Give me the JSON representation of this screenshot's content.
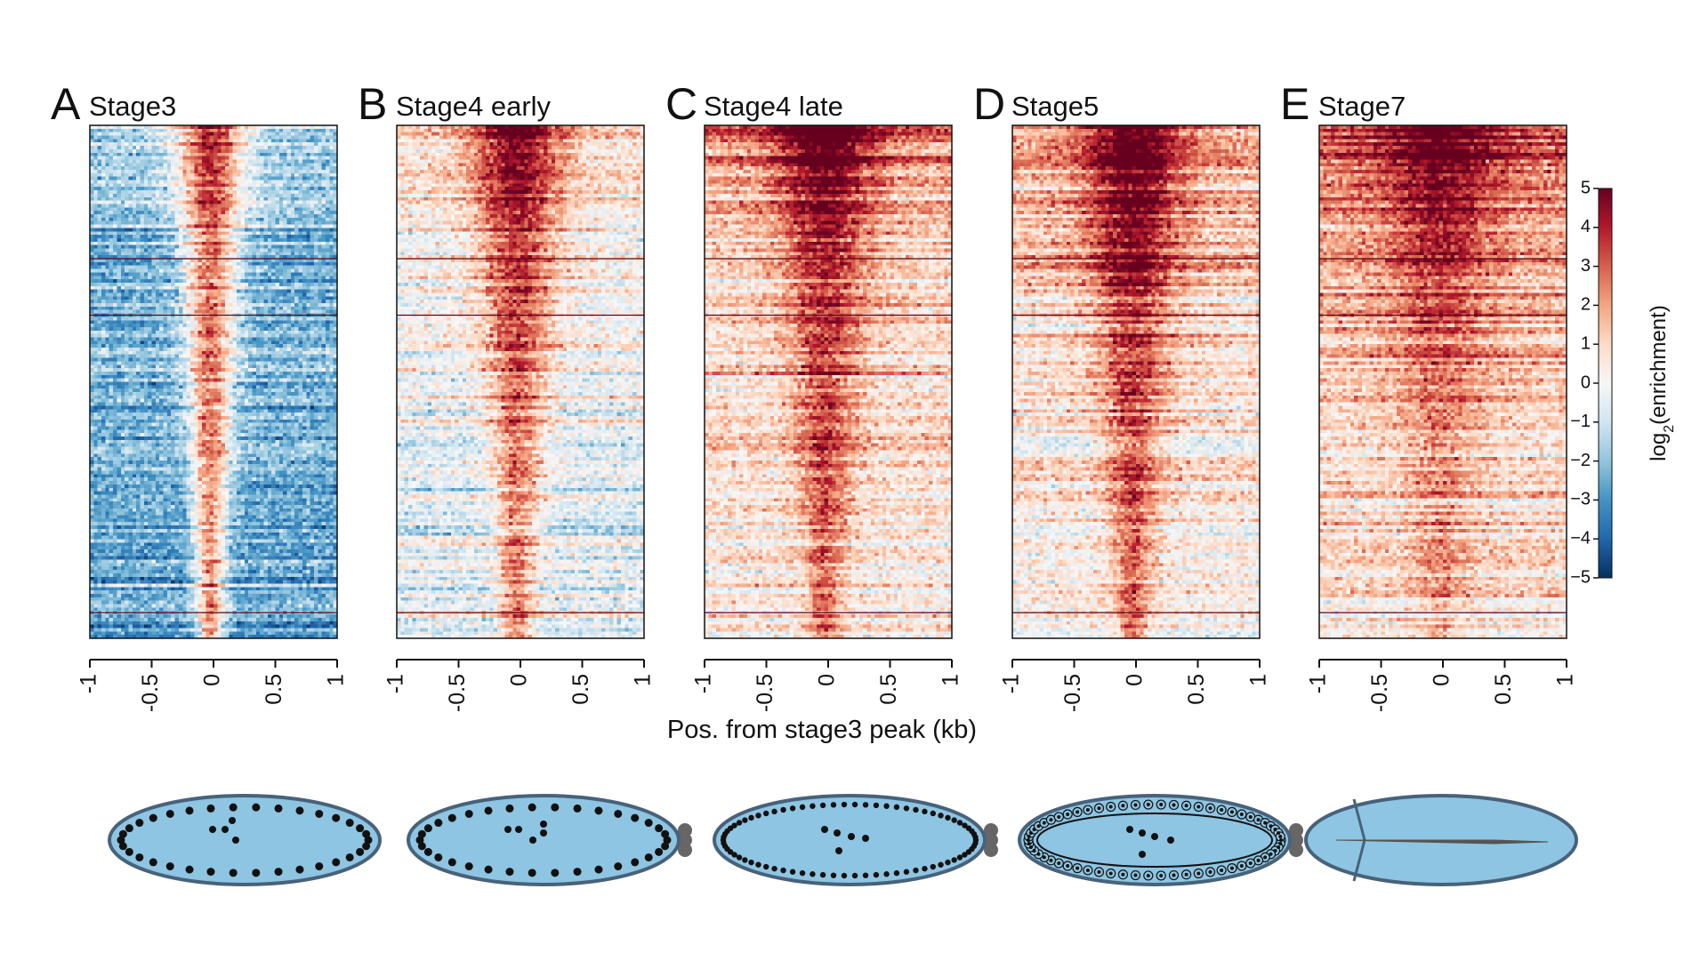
{
  "chart_data": {
    "type": "heatmap",
    "panels": [
      {
        "letter": "A",
        "title": "Stage3",
        "peak_sharpness": 1.0,
        "baseline": -2.6,
        "top_enrichment": 2.2,
        "center_strength": 4.8
      },
      {
        "letter": "B",
        "title": "Stage4 early",
        "peak_sharpness": 0.7,
        "baseline": -0.6,
        "top_enrichment": 3.2,
        "center_strength": 3.0
      },
      {
        "letter": "C",
        "title": "Stage4 late",
        "peak_sharpness": 0.6,
        "baseline": 0.4,
        "top_enrichment": 3.4,
        "center_strength": 2.4
      },
      {
        "letter": "D",
        "title": "Stage5",
        "peak_sharpness": 0.6,
        "baseline": 0.2,
        "top_enrichment": 3.6,
        "center_strength": 2.6
      },
      {
        "letter": "E",
        "title": "Stage7",
        "peak_sharpness": 0.4,
        "baseline": 0.6,
        "top_enrichment": 4.2,
        "center_strength": 1.2
      }
    ],
    "x_ticks": [
      "-1",
      "-0.5",
      "0",
      "0.5",
      "1"
    ],
    "x_tick_values": [
      -1,
      -0.5,
      0,
      0.5,
      1
    ],
    "xlim": [
      -1,
      1
    ],
    "xlabel": "Pos. from stage3 peak (kb)",
    "colorbar": {
      "label_prefix": "log",
      "label_subscript": "2",
      "label_suffix": "(enrichment)",
      "ticks": [
        "5",
        "4",
        "3",
        "2",
        "1",
        "0",
        "−1",
        "−2",
        "−3",
        "−4",
        "−5"
      ],
      "tick_values": [
        5,
        4,
        3,
        2,
        1,
        0,
        -1,
        -2,
        -3,
        -4,
        -5
      ],
      "range": [
        -5,
        5
      ],
      "colors": [
        "#053061",
        "#2166ac",
        "#4393c3",
        "#92c5de",
        "#d1e5f0",
        "#f7f7f7",
        "#fddbc7",
        "#f4a582",
        "#d6604d",
        "#b2182b",
        "#67001f"
      ]
    }
  },
  "embryos": [
    {
      "stage": "Stage3",
      "fill": "#8ec5e2",
      "stroke": "#47627a"
    },
    {
      "stage": "Stage4 early",
      "fill": "#8ec5e2",
      "stroke": "#47627a"
    },
    {
      "stage": "Stage4 late",
      "fill": "#8ec5e2",
      "stroke": "#47627a"
    },
    {
      "stage": "Stage5",
      "fill": "#8ec5e2",
      "stroke": "#47627a"
    },
    {
      "stage": "Stage7",
      "fill": "#8ec5e2",
      "stroke": "#47627a"
    }
  ]
}
